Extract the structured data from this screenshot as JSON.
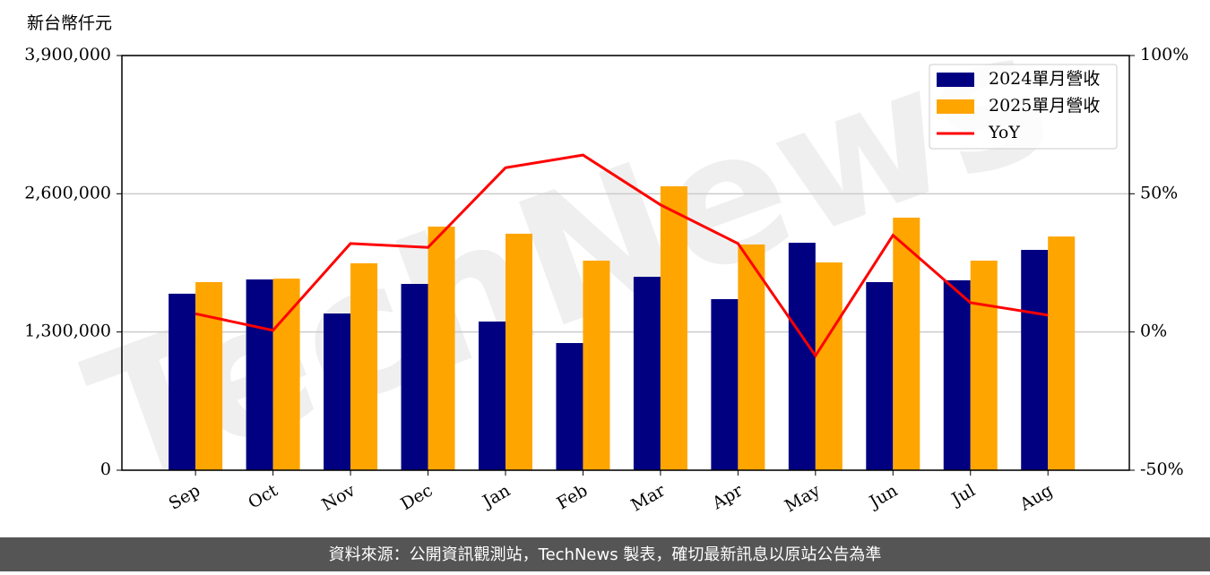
{
  "chart_data": {
    "type": "bar-line",
    "y_axis_label": "新台幣仟元",
    "watermark": "TechNews",
    "footer": "資料來源：公開資訊觀測站，TechNews 製表，確切最新訊息以原站公告為準",
    "categories": [
      "Sep",
      "Oct",
      "Nov",
      "Dec",
      "Jan",
      "Feb",
      "Mar",
      "Apr",
      "May",
      "Jun",
      "Jul",
      "Aug"
    ],
    "series": [
      {
        "name": "2024單月營收",
        "color": "#000080",
        "values": [
          1660000,
          1794000,
          1474000,
          1752000,
          1398000,
          1196000,
          1819000,
          1609000,
          2139000,
          1769000,
          1786000,
          2072000
        ]
      },
      {
        "name": "2025單月營收",
        "color": "#ffa500",
        "values": [
          1769000,
          1802000,
          1946000,
          2291000,
          2224000,
          1971000,
          2670000,
          2123000,
          1954000,
          2375000,
          1971000,
          2198000
        ]
      },
      {
        "name": "YoY",
        "color": "#ff0000",
        "axis": "y2",
        "values": [
          6.6,
          0.6,
          32,
          30.6,
          59.4,
          64,
          46,
          32,
          -8.6,
          35,
          10.6,
          6.1
        ]
      }
    ],
    "ylim": [
      0,
      3900000
    ],
    "yticks": [
      0,
      {
        "value": 1300000,
        "label": "1,300,000"
      },
      {
        "value": 2600000,
        "label": "2,600,000"
      },
      {
        "value": 3900000,
        "label": "3,900,000"
      }
    ],
    "y2lim": [
      -50,
      100
    ],
    "y2ticks": [
      {
        "value": -50,
        "label": "-50%"
      },
      {
        "value": 0,
        "label": "0%"
      },
      {
        "value": 50,
        "label": "50%"
      },
      {
        "value": 100,
        "label": "100%"
      }
    ],
    "grid": true,
    "legend": "upper right"
  }
}
